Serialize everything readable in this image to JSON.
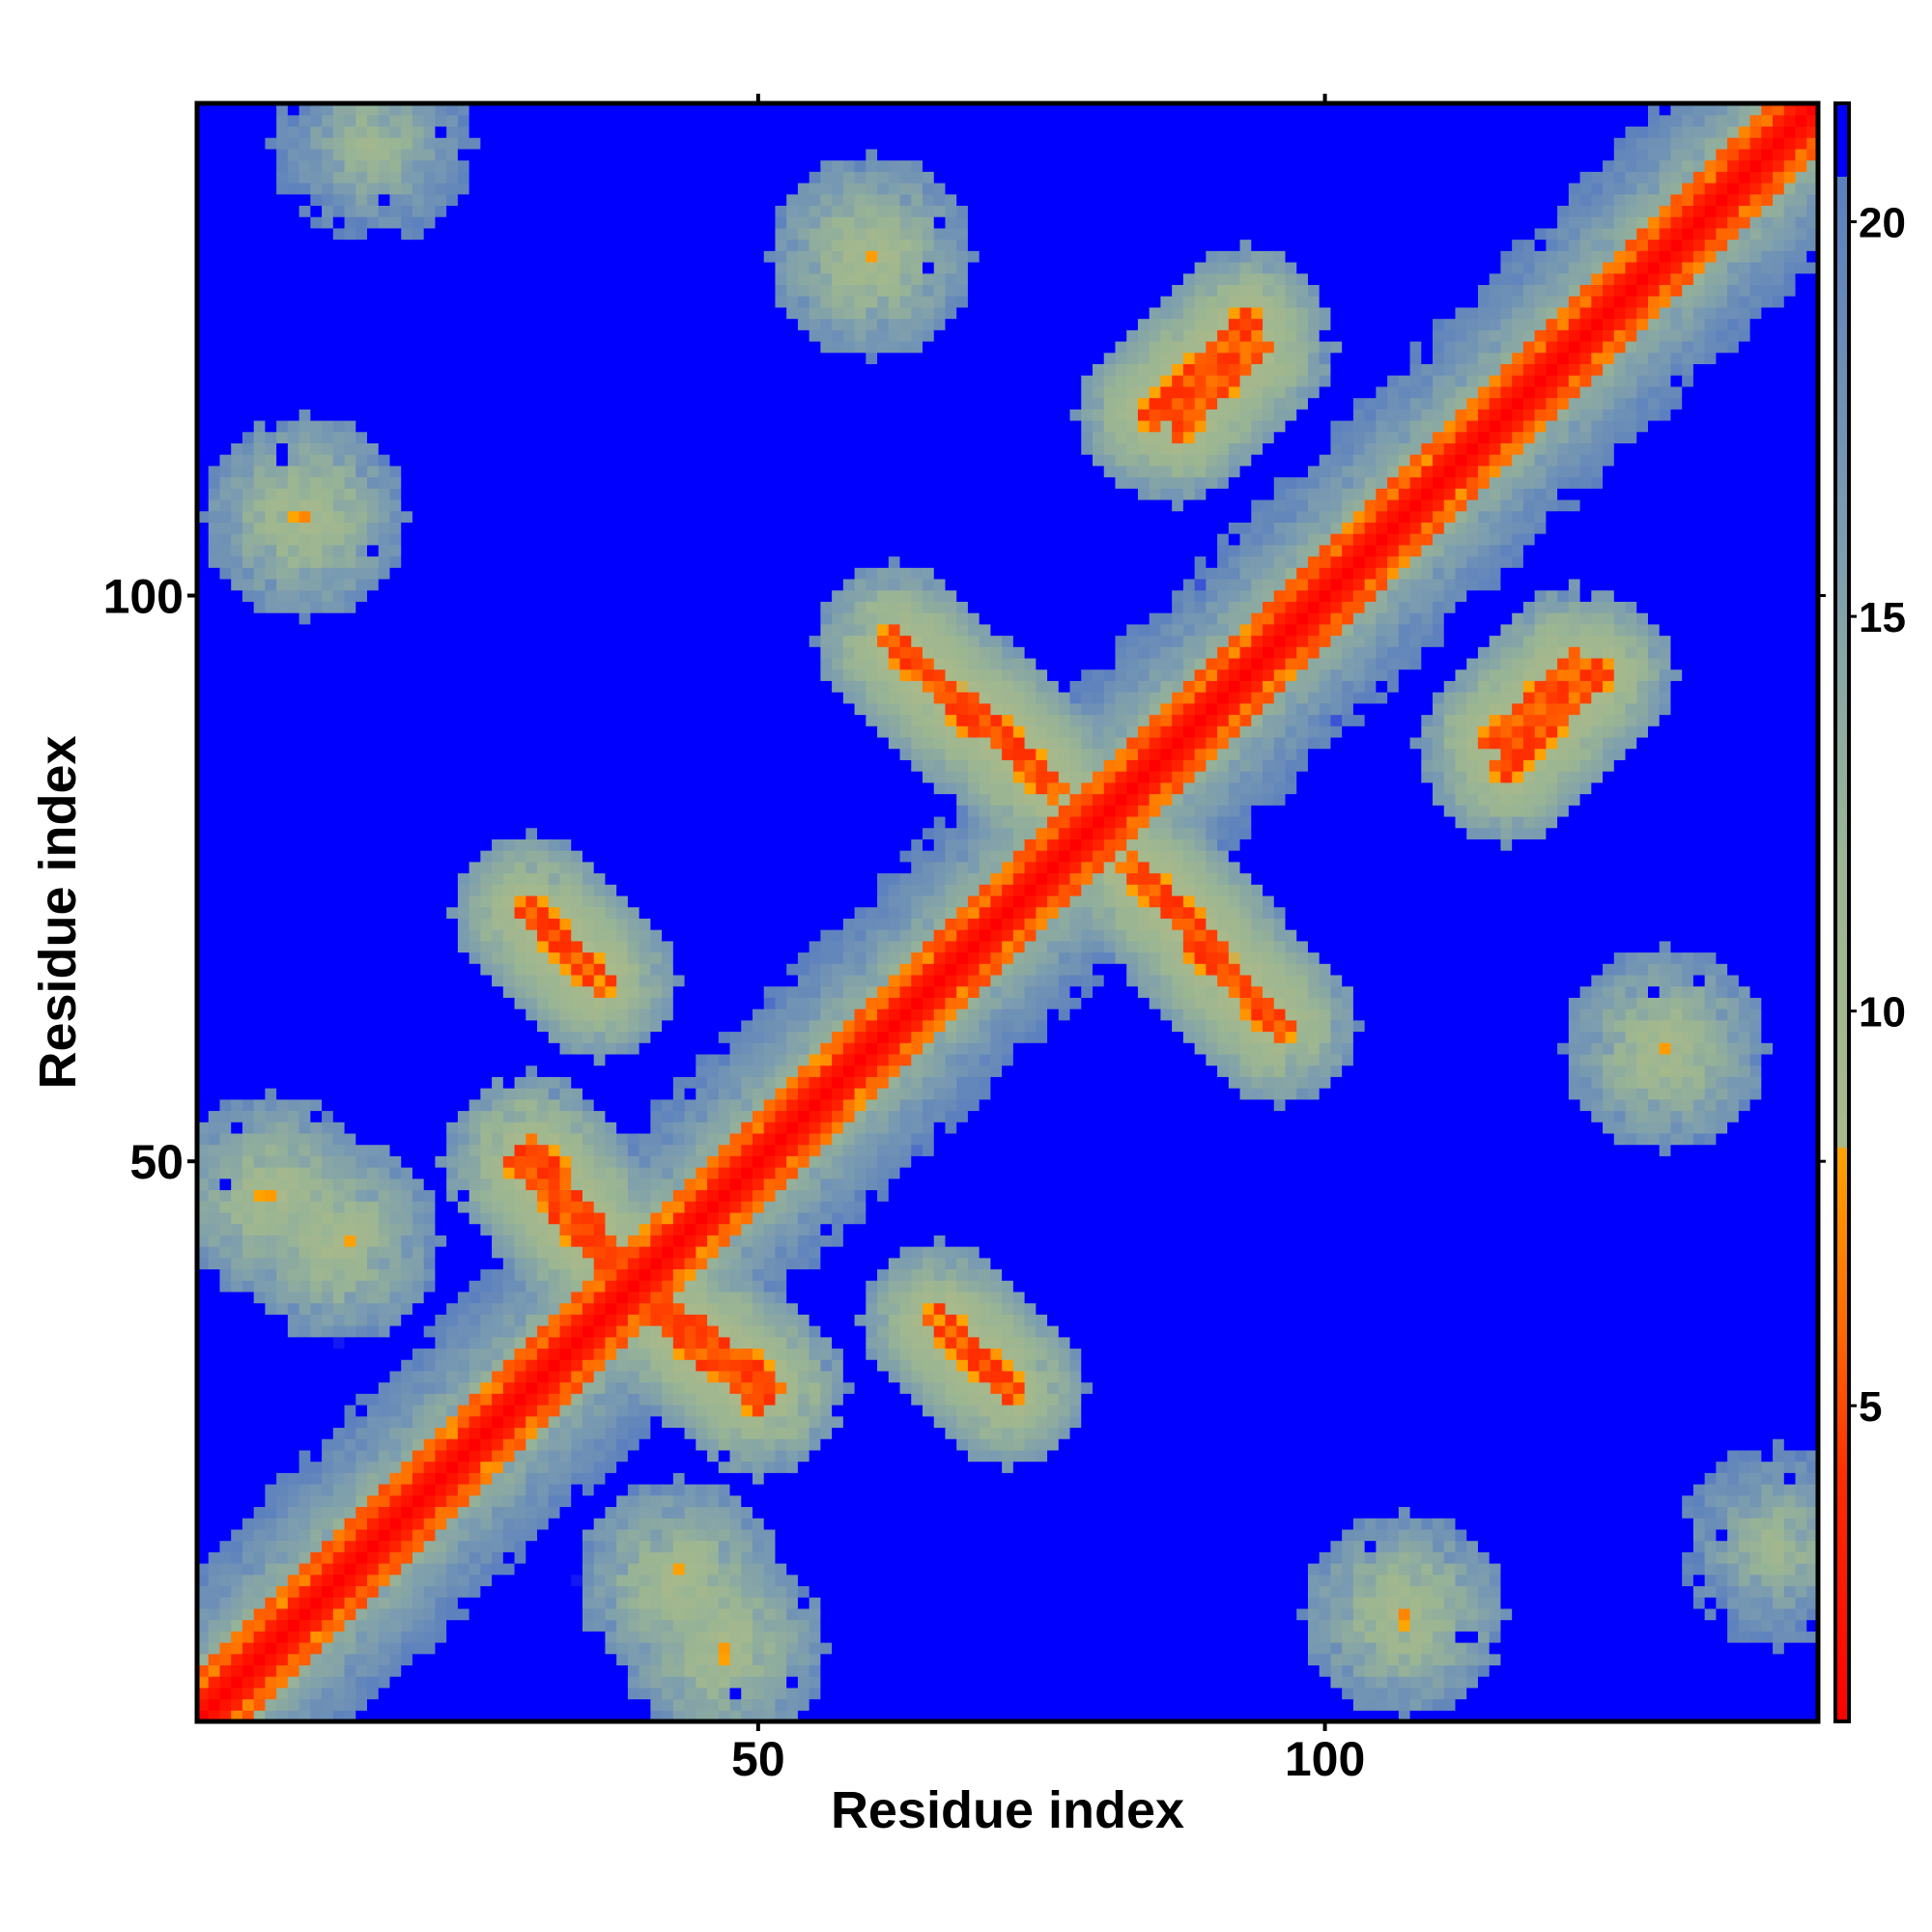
{
  "chart_data": {
    "type": "heatmap",
    "title": "",
    "xlabel": "Residue index",
    "ylabel": "Residue index",
    "n_residues": 143,
    "xlim": [
      1,
      143
    ],
    "ylim": [
      1,
      143
    ],
    "x_ticks": [
      50,
      100
    ],
    "y_ticks": [
      50,
      100
    ],
    "x_tick_labels": [
      "50",
      "100"
    ],
    "y_tick_labels": [
      "50",
      "100"
    ],
    "colorbar": {
      "range": [
        1,
        21.5
      ],
      "ticks": [
        5,
        10,
        15,
        20
      ],
      "tick_labels": [
        "5",
        "10",
        "15",
        "20"
      ],
      "stops": [
        {
          "value": 1,
          "color": "#ff0000"
        },
        {
          "value": 4,
          "color": "#ff2a00"
        },
        {
          "value": 6,
          "color": "#ff6a00"
        },
        {
          "value": 8.3,
          "color": "#ffa500"
        },
        {
          "value": 8.31,
          "color": "#a9b98a"
        },
        {
          "value": 12,
          "color": "#9ab594"
        },
        {
          "value": 16,
          "color": "#7b9cb0"
        },
        {
          "value": 20.6,
          "color": "#5b7fbf"
        },
        {
          "value": 20.61,
          "color": "#0000ff"
        },
        {
          "value": 21.5,
          "color": "#0000ff"
        }
      ]
    },
    "background_value": 21,
    "diagonal_band_half_width": 2,
    "contact_features": [
      {
        "type": "antidiagonal-strand",
        "from": [
          75,
          84
        ],
        "to": [
          62,
          96
        ],
        "level": 7
      },
      {
        "type": "antidiagonal-strand",
        "from": [
          83,
          76
        ],
        "to": [
          95,
          63
        ],
        "level": 7
      },
      {
        "type": "antidiagonal-strand",
        "from": [
          30,
          51
        ],
        "to": [
          37,
          42
        ],
        "level": 7
      },
      {
        "type": "antidiagonal-strand",
        "from": [
          41,
          37
        ],
        "to": [
          50,
          29
        ],
        "level": 7
      },
      {
        "type": "parallel-strand",
        "from": [
          85,
          116
        ],
        "to": [
          93,
          124
        ],
        "level": 7
      },
      {
        "type": "parallel-strand",
        "from": [
          116,
          85
        ],
        "to": [
          124,
          93
        ],
        "level": 7
      },
      {
        "type": "antidiagonal-strand",
        "from": [
          30,
          72
        ],
        "to": [
          36,
          66
        ],
        "level": 7
      },
      {
        "type": "antidiagonal-strand",
        "from": [
          66,
          36
        ],
        "to": [
          72,
          30
        ],
        "level": 7
      },
      {
        "type": "antidiagonal-strand",
        "from": [
          115,
          87
        ],
        "to": [
          122,
          94
        ],
        "level": 7
      },
      {
        "type": "cluster",
        "center": [
          107,
          10
        ],
        "level": 9
      },
      {
        "type": "cluster",
        "center": [
          10,
          107
        ],
        "level": 9
      },
      {
        "type": "cluster",
        "center": [
          43,
          13
        ],
        "level": 9
      },
      {
        "type": "cluster",
        "center": [
          13,
          43
        ],
        "level": 9
      },
      {
        "type": "cluster",
        "center": [
          60,
          130
        ],
        "level": 9
      },
      {
        "type": "cluster",
        "center": [
          130,
          60
        ],
        "level": 9
      },
      {
        "type": "cluster",
        "center": [
          7,
          47
        ],
        "level": 9
      },
      {
        "type": "cluster",
        "center": [
          47,
          7
        ],
        "level": 9
      },
      {
        "type": "cluster",
        "center": [
          140,
          16
        ],
        "level": 11
      },
      {
        "type": "cluster",
        "center": [
          16,
          140
        ],
        "level": 11
      }
    ]
  }
}
